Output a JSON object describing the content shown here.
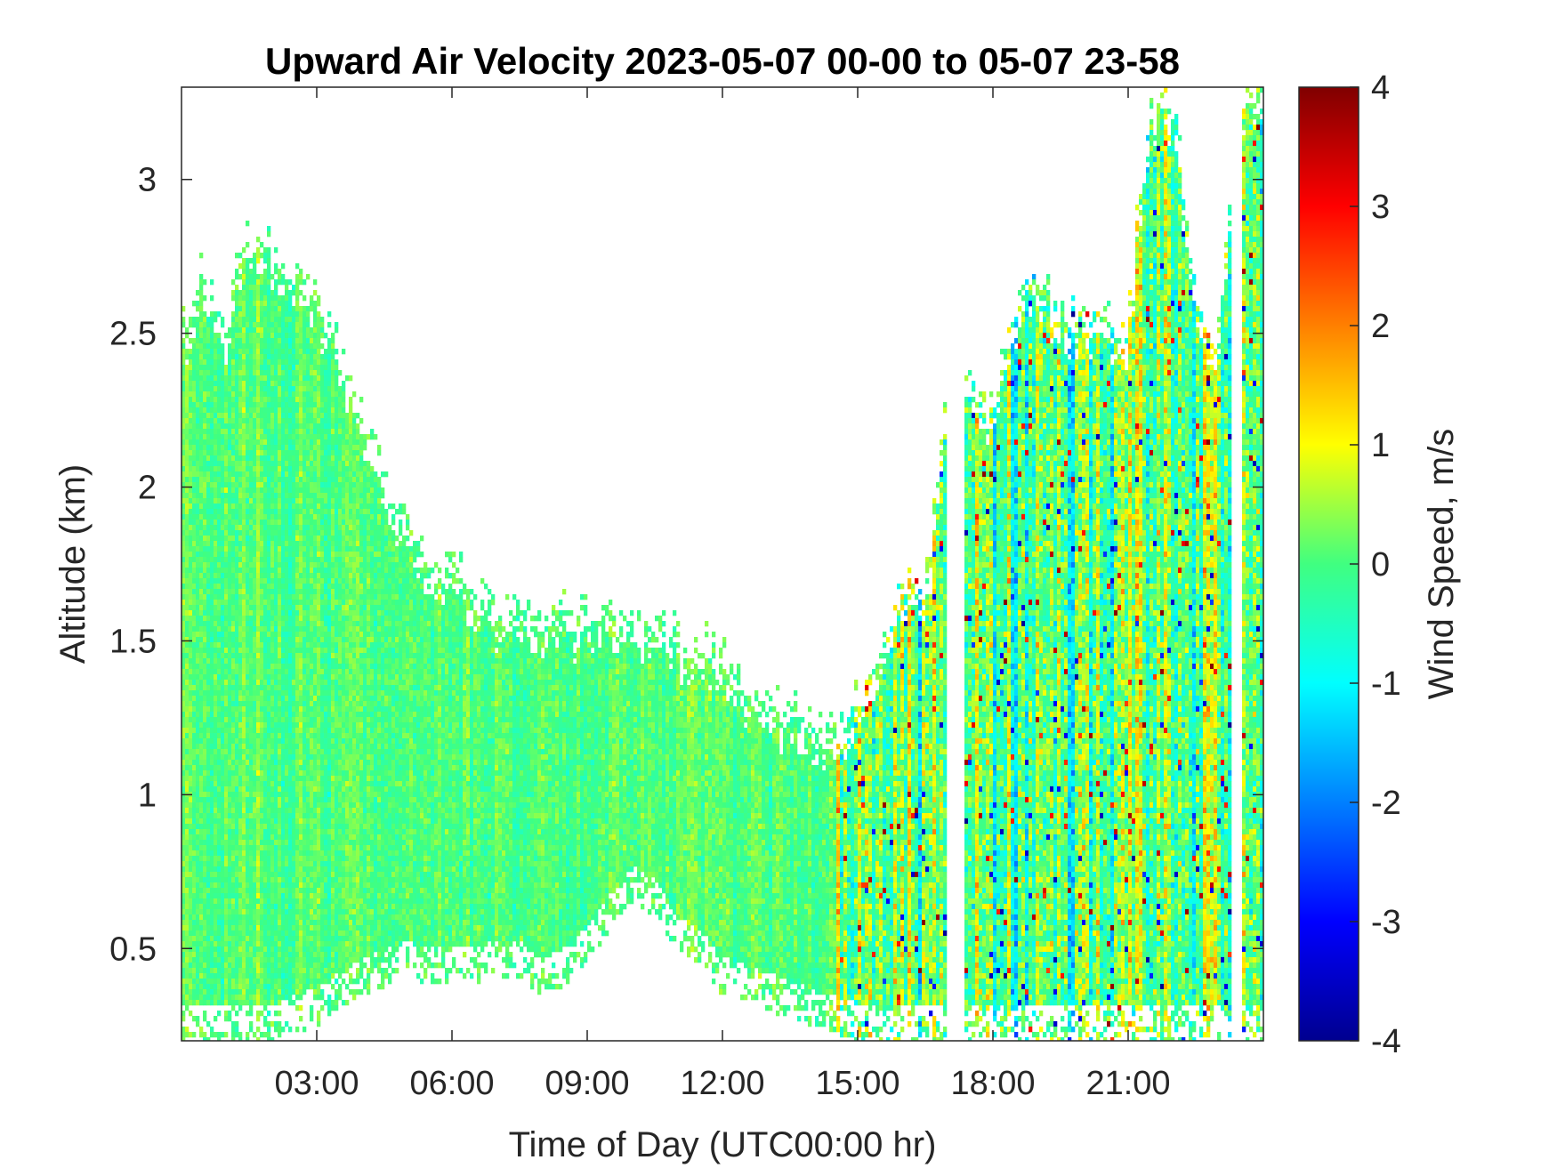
{
  "chart_data": {
    "type": "heatmap",
    "title": "Upward Air Velocity 2023-05-07 00-00 to 05-07 23-58",
    "xlabel": "Time of Day (UTC00:00 hr)",
    "ylabel": "Altitude (km)",
    "x_unit": "hour",
    "xlim": [
      0,
      24
    ],
    "ylim": [
      0.2,
      3.3
    ],
    "x_ticks": [
      {
        "value": 3,
        "label": "03:00"
      },
      {
        "value": 6,
        "label": "06:00"
      },
      {
        "value": 9,
        "label": "09:00"
      },
      {
        "value": 12,
        "label": "12:00"
      },
      {
        "value": 15,
        "label": "15:00"
      },
      {
        "value": 18,
        "label": "18:00"
      },
      {
        "value": 21,
        "label": "21:00"
      }
    ],
    "y_ticks": [
      {
        "value": 0.5,
        "label": "0.5"
      },
      {
        "value": 1,
        "label": "1"
      },
      {
        "value": 1.5,
        "label": "1.5"
      },
      {
        "value": 2,
        "label": "2"
      },
      {
        "value": 2.5,
        "label": "2.5"
      },
      {
        "value": 3,
        "label": "3"
      }
    ],
    "colorbar": {
      "label": "Wind Speed, m/s",
      "colormap": "jet",
      "range": [
        -4,
        4
      ],
      "ticks": [
        {
          "value": 4,
          "label": "4"
        },
        {
          "value": 3,
          "label": "3"
        },
        {
          "value": 2,
          "label": "2"
        },
        {
          "value": 1,
          "label": "1"
        },
        {
          "value": 0,
          "label": "0"
        },
        {
          "value": -1,
          "label": "-1"
        },
        {
          "value": -2,
          "label": "-2"
        },
        {
          "value": -3,
          "label": "-3"
        },
        {
          "value": -4,
          "label": "-4"
        }
      ]
    },
    "grid": false,
    "data_top_envelope": {
      "x": [
        0,
        0.5,
        1,
        1.2,
        1.5,
        2,
        2.5,
        3,
        3.5,
        4,
        4.5,
        5,
        5.5,
        6,
        6.5,
        7,
        7.5,
        8,
        8.5,
        9,
        9.5,
        10,
        10.5,
        11,
        11.5,
        12,
        12.5,
        13,
        13.5,
        14,
        14.5,
        15,
        15.5,
        16,
        16.5,
        17,
        17.5,
        18,
        18.5,
        19,
        19.5,
        20,
        20.5,
        21,
        21.5,
        22,
        22.5,
        23,
        23.5,
        24
      ],
      "y": [
        2.55,
        2.7,
        2.55,
        2.75,
        2.85,
        2.8,
        2.7,
        2.65,
        2.5,
        2.25,
        2.05,
        1.9,
        1.8,
        1.75,
        1.7,
        1.65,
        1.6,
        1.6,
        1.6,
        1.6,
        1.6,
        1.6,
        1.6,
        1.55,
        1.5,
        1.45,
        1.4,
        1.35,
        1.3,
        1.25,
        1.25,
        1.3,
        1.5,
        1.7,
        1.7,
        2.3,
        2.4,
        2.3,
        2.6,
        2.7,
        2.6,
        2.55,
        2.6,
        2.5,
        3.3,
        3.3,
        2.6,
        2.5,
        3.3,
        3.3
      ]
    },
    "data_bottom_envelope": {
      "x": [
        0,
        1,
        2,
        3,
        3.5,
        4,
        5,
        6,
        7,
        7.5,
        8,
        8.5,
        9,
        9.5,
        10,
        10.5,
        11,
        11.5,
        12,
        13,
        14,
        15,
        16,
        17,
        18,
        19,
        20,
        21,
        22,
        23,
        24
      ],
      "y": [
        0.2,
        0.2,
        0.2,
        0.25,
        0.3,
        0.35,
        0.4,
        0.38,
        0.4,
        0.4,
        0.35,
        0.38,
        0.45,
        0.55,
        0.65,
        0.6,
        0.5,
        0.45,
        0.35,
        0.3,
        0.25,
        0.2,
        0.2,
        0.2,
        0.2,
        0.2,
        0.2,
        0.2,
        0.2,
        0.2,
        0.2
      ]
    },
    "high_variance_x_range": [
      14.5,
      24
    ],
    "gap_x_ranges": [
      [
        17,
        17.4
      ],
      [
        23.3,
        23.5
      ]
    ]
  }
}
